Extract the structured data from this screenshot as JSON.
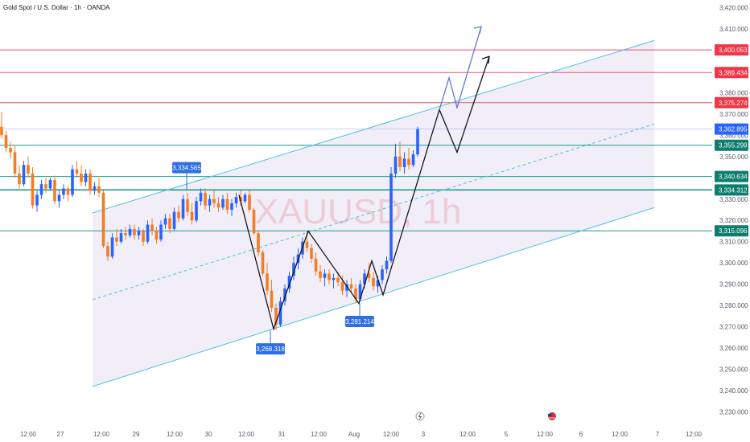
{
  "header": {
    "title": "Gold Spot / U.S. Dollar · 1h · OANDA"
  },
  "watermark": {
    "text": "XAUUSD, 1h",
    "color": "#e9a3ab"
  },
  "colors": {
    "bg": "#ffffff",
    "up": "#2962ff",
    "down": "#f57c1f",
    "channel": "#4dc3e0",
    "channel_fill": "#f1eef8",
    "red_line": "#f0506e",
    "teal_line": "#1e9c8a",
    "label_blue": "#2f6fe4",
    "current_label": "#2962ff",
    "path_black": "#131722",
    "path_blue": "#5b7bd5"
  },
  "chart_data": {
    "type": "candlestick",
    "symbol": "XAUUSD",
    "timeframe": "1h",
    "ylim": [
      3228,
      3422
    ],
    "y_ticks": [
      3230,
      3240,
      3250,
      3260,
      3270,
      3280,
      3290,
      3300,
      3310,
      3320,
      3330,
      3340,
      3350,
      3360,
      3370,
      3380,
      3390,
      3400,
      3410,
      3420
    ],
    "y_tick_labels": [
      "3,230.000",
      "3,240.000",
      "3,250.000",
      "3,260.000",
      "3,270.000",
      "3,280.000",
      "3,290.000",
      "3,300.000",
      "3,310.000",
      "3,320.000",
      "3,330.000",
      "3,340.000",
      "3,350.000",
      "3,360.000",
      "3,370.000",
      "3,380.000",
      "3,390.000",
      "3,400.000",
      "3,410.000",
      "3,420.000"
    ],
    "x_ticks": [
      "12:00",
      "27",
      "12:00",
      "29",
      "12:00",
      "30",
      "12:00",
      "31",
      "12:00",
      "Aug",
      "12:00",
      "3",
      "12:00",
      "5",
      "12:00",
      "6",
      "12:00",
      "7",
      "12:00"
    ],
    "price_lines": [
      {
        "value": 3400.053,
        "label": "3,400.053",
        "kind": "red"
      },
      {
        "value": 3389.434,
        "label": "3,389.434",
        "kind": "red"
      },
      {
        "value": 3375.274,
        "label": "3,375.274",
        "kind": "red"
      },
      {
        "value": 3362.895,
        "label": "3,362.895",
        "kind": "current"
      },
      {
        "value": 3355.299,
        "label": "3,355.299",
        "kind": "teal"
      },
      {
        "value": 3340.634,
        "label": "3,340.634",
        "kind": "teal"
      },
      {
        "value": 3334.312,
        "label": "3,334.312",
        "kind": "teal"
      },
      {
        "value": 3315.096,
        "label": "3,315.096",
        "kind": "teal"
      }
    ],
    "callouts": [
      {
        "value": 3334.565,
        "label": "3,334.565",
        "position": "above"
      },
      {
        "value": 3268.318,
        "label": "3,268.318",
        "position": "below"
      },
      {
        "value": 3281.214,
        "label": "3,281.214",
        "position": "below"
      }
    ],
    "path_prices": [
      3332.0,
      3269.0,
      3315.0,
      3281.0,
      3301.0,
      3285.0,
      3372.0,
      3352.0,
      3397.0
    ],
    "alt_path_prices": [
      3372.0,
      3387.0,
      3373.0,
      3411.0
    ],
    "channel": {
      "upper": [
        3323.5,
        3404.5
      ],
      "lower": [
        3242.0,
        3326.0
      ],
      "mid_dashed": true
    },
    "candles": [
      [
        3364.0,
        3371.0,
        3358.5,
        3360.0
      ],
      [
        3360.0,
        3362.0,
        3352.0,
        3354.0
      ],
      [
        3354.0,
        3357.0,
        3349.0,
        3352.0
      ],
      [
        3352.0,
        3355.0,
        3340.0,
        3342.0
      ],
      [
        3342.0,
        3346.0,
        3335.0,
        3337.0
      ],
      [
        3337.0,
        3348.0,
        3336.0,
        3346.0
      ],
      [
        3346.0,
        3350.0,
        3340.0,
        3342.0
      ],
      [
        3342.0,
        3345.0,
        3325.5,
        3327.0
      ],
      [
        3327.0,
        3334.0,
        3324.0,
        3332.0
      ],
      [
        3332.0,
        3339.0,
        3330.0,
        3337.0
      ],
      [
        3337.0,
        3340.0,
        3333.0,
        3335.0
      ],
      [
        3335.0,
        3340.0,
        3334.0,
        3339.0
      ],
      [
        3339.0,
        3341.0,
        3327.5,
        3329.0
      ],
      [
        3329.0,
        3334.0,
        3326.0,
        3332.0
      ],
      [
        3332.0,
        3337.0,
        3330.0,
        3335.0
      ],
      [
        3335.0,
        3336.0,
        3329.0,
        3332.0
      ],
      [
        3332.0,
        3346.0,
        3331.0,
        3344.0
      ],
      [
        3344.0,
        3348.0,
        3340.0,
        3342.0
      ],
      [
        3342.0,
        3346.0,
        3336.0,
        3338.0
      ],
      [
        3338.0,
        3344.0,
        3336.0,
        3342.0
      ],
      [
        3342.0,
        3344.0,
        3332.0,
        3334.0
      ],
      [
        3334.0,
        3338.0,
        3332.0,
        3336.0
      ],
      [
        3336.0,
        3340.0,
        3331.0,
        3333.0
      ],
      [
        3333.0,
        3334.0,
        3307.0,
        3308.0
      ],
      [
        3308.0,
        3310.0,
        3301.0,
        3303.0
      ],
      [
        3303.0,
        3314.0,
        3302.0,
        3312.0
      ],
      [
        3312.0,
        3316.0,
        3308.0,
        3310.0
      ],
      [
        3310.0,
        3316.0,
        3309.0,
        3314.0
      ],
      [
        3314.0,
        3317.0,
        3311.0,
        3313.0
      ],
      [
        3313.0,
        3318.0,
        3312.0,
        3316.0
      ],
      [
        3316.0,
        3318.0,
        3311.0,
        3313.0
      ],
      [
        3313.0,
        3317.0,
        3311.0,
        3315.0
      ],
      [
        3315.0,
        3316.0,
        3308.0,
        3310.0
      ],
      [
        3310.0,
        3320.0,
        3309.0,
        3318.0
      ],
      [
        3318.0,
        3321.0,
        3313.0,
        3315.0
      ],
      [
        3315.0,
        3317.0,
        3309.0,
        3311.0
      ],
      [
        3311.0,
        3320.0,
        3310.0,
        3318.0
      ],
      [
        3318.0,
        3323.0,
        3316.0,
        3321.0
      ],
      [
        3321.0,
        3323.0,
        3314.0,
        3316.0
      ],
      [
        3316.0,
        3326.0,
        3315.0,
        3324.0
      ],
      [
        3324.0,
        3327.0,
        3319.0,
        3321.0
      ],
      [
        3321.0,
        3332.0,
        3320.0,
        3330.0
      ],
      [
        3330.0,
        3333.0,
        3322.0,
        3324.0
      ],
      [
        3324.0,
        3328.0,
        3318.0,
        3320.0
      ],
      [
        3320.0,
        3331.0,
        3319.0,
        3329.0
      ],
      [
        3329.0,
        3335.0,
        3327.0,
        3333.0
      ],
      [
        3333.0,
        3335.0,
        3325.0,
        3327.0
      ],
      [
        3327.0,
        3332.0,
        3324.0,
        3330.0
      ],
      [
        3330.0,
        3334.0,
        3326.0,
        3328.0
      ],
      [
        3328.0,
        3331.0,
        3324.0,
        3326.0
      ],
      [
        3326.0,
        3332.0,
        3325.0,
        3330.0
      ],
      [
        3330.0,
        3333.0,
        3323.0,
        3325.0
      ],
      [
        3325.0,
        3330.0,
        3322.0,
        3328.0
      ],
      [
        3328.0,
        3333.0,
        3326.0,
        3331.0
      ],
      [
        3331.0,
        3334.0,
        3327.0,
        3329.0
      ],
      [
        3329.0,
        3333.0,
        3328.0,
        3332.0
      ],
      [
        3332.0,
        3334.0,
        3324.0,
        3325.0
      ],
      [
        3325.0,
        3326.0,
        3313.0,
        3314.0
      ],
      [
        3314.0,
        3315.0,
        3303.0,
        3305.0
      ],
      [
        3305.0,
        3306.0,
        3294.0,
        3295.0
      ],
      [
        3295.0,
        3300.0,
        3285.0,
        3287.0
      ],
      [
        3287.0,
        3292.0,
        3277.0,
        3279.0
      ],
      [
        3279.0,
        3281.0,
        3268.3,
        3271.0
      ],
      [
        3271.0,
        3284.0,
        3270.0,
        3282.0
      ],
      [
        3282.0,
        3290.0,
        3280.0,
        3288.0
      ],
      [
        3288.0,
        3296.0,
        3286.0,
        3294.0
      ],
      [
        3294.0,
        3303.0,
        3292.0,
        3300.0
      ],
      [
        3300.0,
        3307.0,
        3297.0,
        3304.0
      ],
      [
        3304.0,
        3312.0,
        3302.0,
        3310.0
      ],
      [
        3310.0,
        3315.0,
        3305.0,
        3307.0
      ],
      [
        3307.0,
        3309.0,
        3300.0,
        3302.0
      ],
      [
        3302.0,
        3305.0,
        3294.0,
        3296.0
      ],
      [
        3296.0,
        3299.0,
        3291.0,
        3293.0
      ],
      [
        3293.0,
        3297.0,
        3289.0,
        3295.0
      ],
      [
        3295.0,
        3297.0,
        3290.0,
        3292.0
      ],
      [
        3292.0,
        3295.0,
        3288.0,
        3293.0
      ],
      [
        3293.0,
        3296.0,
        3289.0,
        3291.0
      ],
      [
        3291.0,
        3294.0,
        3285.0,
        3287.0
      ],
      [
        3287.0,
        3292.0,
        3284.0,
        3290.0
      ],
      [
        3290.0,
        3293.0,
        3286.0,
        3288.0
      ],
      [
        3288.0,
        3290.0,
        3281.2,
        3283.0
      ],
      [
        3283.0,
        3292.0,
        3282.0,
        3290.0
      ],
      [
        3290.0,
        3297.0,
        3288.0,
        3295.0
      ],
      [
        3295.0,
        3300.0,
        3291.0,
        3293.0
      ],
      [
        3293.0,
        3296.0,
        3287.0,
        3289.0
      ],
      [
        3289.0,
        3294.0,
        3286.0,
        3292.0
      ],
      [
        3292.0,
        3299.0,
        3290.0,
        3297.0
      ],
      [
        3297.0,
        3303.0,
        3295.0,
        3301.0
      ],
      [
        3301.0,
        3345.0,
        3300.0,
        3342.0
      ],
      [
        3342.0,
        3356.0,
        3340.0,
        3350.0
      ],
      [
        3350.0,
        3357.0,
        3343.0,
        3345.0
      ],
      [
        3345.0,
        3352.0,
        3342.0,
        3349.0
      ],
      [
        3349.0,
        3354.0,
        3344.0,
        3346.0
      ],
      [
        3346.0,
        3353.0,
        3345.0,
        3351.0
      ],
      [
        3351.0,
        3364.0,
        3350.0,
        3362.9
      ]
    ]
  }
}
